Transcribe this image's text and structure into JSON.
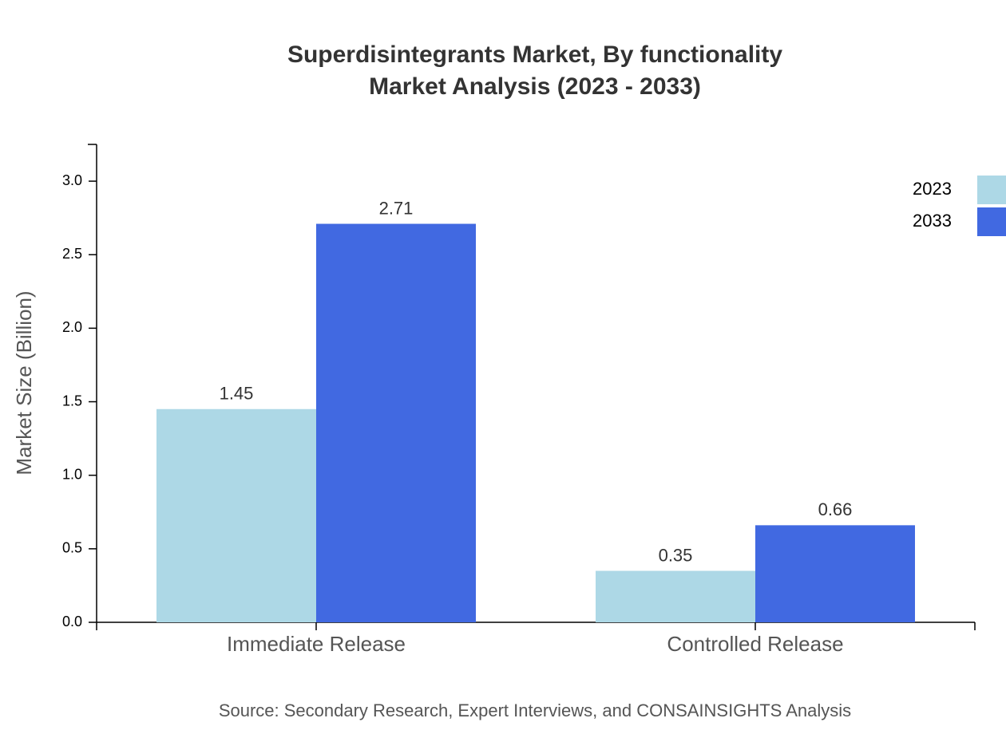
{
  "chart_data": {
    "type": "bar",
    "title": "Superdisintegrants Market, By functionality",
    "subtitle": "Market Analysis (2023 - 2033)",
    "y_label": "Market Size (Billion)",
    "source": "Source: Secondary Research, Expert Interviews, and CONSAINSIGHTS Analysis",
    "categories": [
      "Immediate Release",
      "Controlled Release"
    ],
    "series": [
      {
        "name": "2023",
        "color": "#add8e6",
        "values": [
          1.45,
          0.35
        ]
      },
      {
        "name": "2033",
        "color": "#4169e1",
        "values": [
          2.71,
          0.66
        ]
      }
    ],
    "ylim": [
      0,
      3.25
    ],
    "yticks": [
      {
        "value": 0,
        "label": "0.0"
      },
      0.5,
      {
        "value": 1,
        "label": "1.0"
      },
      1.5,
      {
        "value": 2,
        "label": "2.0"
      },
      2.5,
      {
        "value": 3,
        "label": "3.0"
      }
    ],
    "legend": "top-right"
  }
}
